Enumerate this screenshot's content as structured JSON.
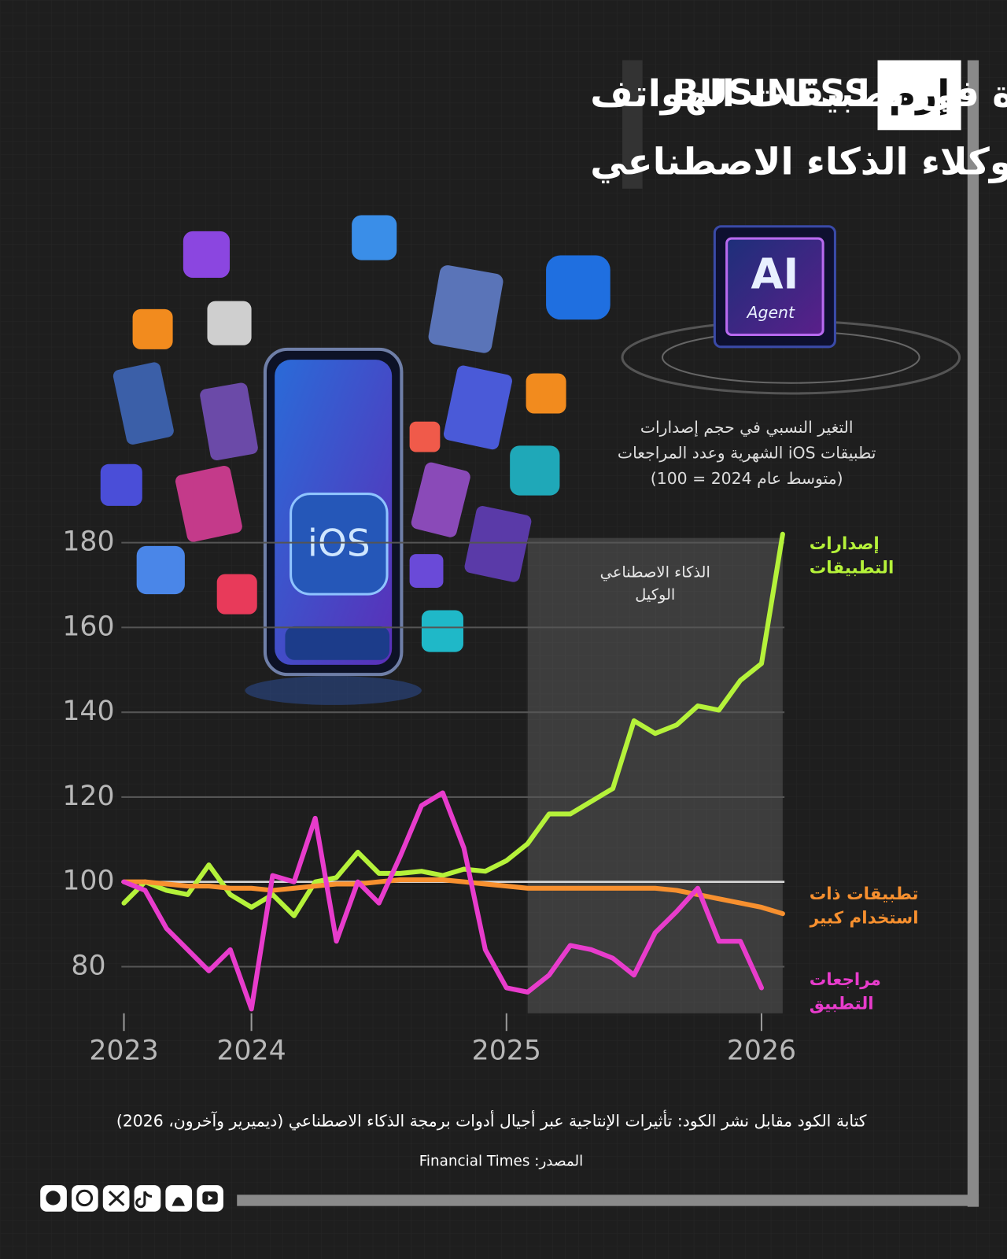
{
  "brand": {
    "logo": "إرم",
    "name": "BUSINESS"
  },
  "headline": [
    "طفرة في تطبيقات الهواتف",
    "بفضل وكلاء الذكاء الاصطناعي"
  ],
  "illustration": {
    "phone_label": "iOS",
    "chip_label": "AI",
    "chip_sublabel": "Agent"
  },
  "chart_data": {
    "type": "line",
    "subtitle": [
      "التغير النسبي في حجم إصدارات",
      "تطبيقات iOS الشهرية وعدد المراجعات",
      "(متوسط عام 2024 = 100)"
    ],
    "x": [
      2023.5,
      2023.583,
      2023.667,
      2023.75,
      2023.833,
      2023.917,
      2024,
      2024.083,
      2024.167,
      2024.25,
      2024.333,
      2024.417,
      2024.5,
      2024.583,
      2024.667,
      2024.75,
      2024.833,
      2024.917,
      2025,
      2025.083,
      2025.167,
      2025.25,
      2025.333,
      2025.417,
      2025.5,
      2025.583,
      2025.667,
      2025.75,
      2025.833,
      2025.917,
      2026,
      2026.083
    ],
    "series": [
      {
        "name": "إصدارات التطبيقات",
        "color": "#b5f23a",
        "values": [
          95,
          100,
          98,
          97,
          104,
          97,
          94,
          97,
          92,
          100,
          101,
          107,
          102,
          102,
          102.5,
          101.5,
          103,
          102.5,
          105,
          109,
          116,
          116,
          119,
          122,
          138,
          135,
          137,
          141.5,
          140.5,
          147.5,
          151.5,
          182
        ]
      },
      {
        "name": "تطبيقات ذات استخدام كبير",
        "color": "#f7902f",
        "values": [
          100,
          100,
          99.5,
          99,
          99,
          98.5,
          98.5,
          98,
          98.5,
          99,
          99.5,
          99.5,
          100,
          100.5,
          100.5,
          100.5,
          100,
          99.5,
          99,
          98.5,
          98.5,
          98.5,
          98.5,
          98.5,
          98.5,
          98.5,
          98,
          97,
          96,
          95,
          94,
          92.5
        ]
      },
      {
        "name": "مراجعات التطبيق",
        "color": "#e83ccc",
        "values": [
          100,
          98,
          89,
          84,
          79,
          84,
          70,
          101.5,
          100,
          115,
          86,
          100,
          95,
          106,
          118,
          121,
          108,
          84,
          75,
          74,
          78,
          85,
          84,
          82,
          78,
          88,
          93,
          98.5,
          86,
          86,
          75,
          null
        ]
      }
    ],
    "highlight": {
      "label": "الذكاء الاصطناعي الوكيل",
      "x": [
        2025.083,
        2026.083
      ]
    },
    "reference_line": 100,
    "xlim": [
      2023.49,
      2026.09
    ],
    "xticks": [
      {
        "value": 2023.5,
        "label": "2023"
      },
      2024,
      2025,
      2026
    ],
    "ylim": [
      69,
      183
    ],
    "yticks": [
      80,
      100,
      120,
      140,
      160,
      180
    ],
    "grid": true
  },
  "footer": {
    "caption": "كتابة الكود مقابل نشر الكود: تأثيرات الإنتاجية عبر أجيال أدوات برمجة الذكاء الاصطناعي (ديميرير وآخرون، 2026)",
    "source": "المصدر: Financial Times"
  }
}
